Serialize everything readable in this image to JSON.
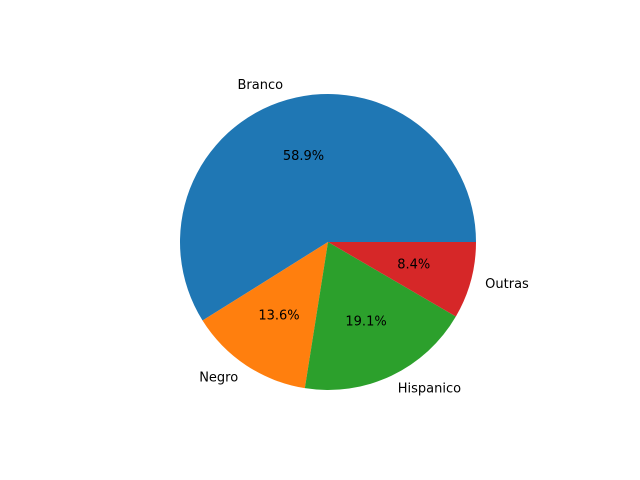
{
  "chart_data": {
    "type": "pie",
    "title": "",
    "start_angle": 0,
    "direction": "counterclockwise",
    "labels": [
      "Branco",
      "Negro",
      "Hispanico",
      "Outras"
    ],
    "values": [
      58.9,
      13.6,
      19.1,
      8.4
    ],
    "percent_labels": [
      "58.9%",
      "13.6%",
      "19.1%",
      "8.4%"
    ],
    "colors": [
      "#1f77b4",
      "#ff7f0e",
      "#2ca02c",
      "#d62728"
    ]
  }
}
